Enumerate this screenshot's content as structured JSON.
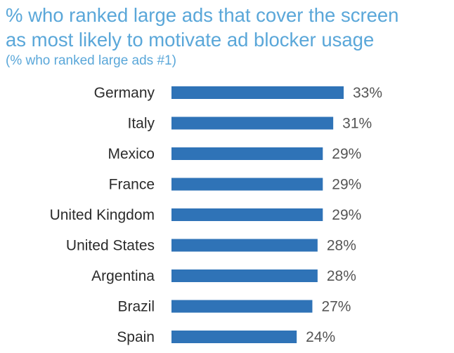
{
  "chart_data": {
    "type": "bar",
    "orientation": "horizontal",
    "title_lines": [
      "% who ranked large ads that cover the screen",
      "as most likely to motivate ad blocker usage"
    ],
    "subtitle": "(% who ranked large ads #1)",
    "categories": [
      "Germany",
      "Italy",
      "Mexico",
      "France",
      "United Kingdom",
      "United States",
      "Argentina",
      "Brazil",
      "Spain"
    ],
    "values": [
      33,
      31,
      29,
      29,
      29,
      28,
      28,
      27,
      24
    ],
    "value_labels": [
      "33%",
      "31%",
      "29%",
      "29%",
      "29%",
      "28%",
      "28%",
      "27%",
      "24%"
    ],
    "unit": "%",
    "xlim": [
      0,
      33
    ],
    "grid": false,
    "legend": null
  },
  "colors": {
    "bar": "#2f73b7",
    "title": "#5aa7d9",
    "category_text": "#2b2b2b",
    "value_text": "#555555"
  }
}
